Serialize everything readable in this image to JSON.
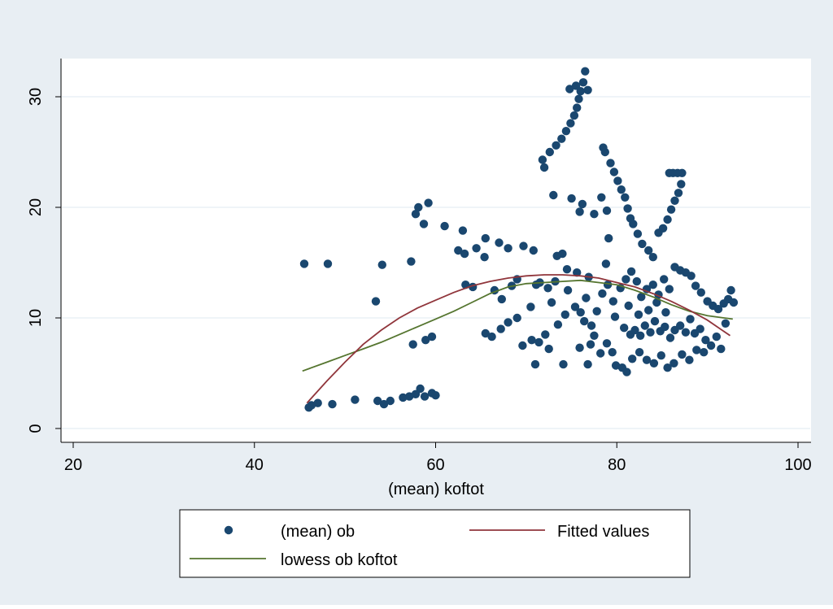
{
  "chart_data": {
    "type": "scatter",
    "title": "",
    "xlabel": "(mean) koftot",
    "ylabel": "",
    "xlim": [
      20,
      100
    ],
    "ylim": [
      0,
      33
    ],
    "x_ticks": [
      20,
      40,
      60,
      80,
      100
    ],
    "y_ticks": [
      0,
      10,
      20,
      30
    ],
    "x_tick_labels": [
      "20",
      "40",
      "60",
      "80",
      "100"
    ],
    "y_tick_labels": [
      "0",
      "10",
      "20",
      "30"
    ],
    "grid": "horizontal",
    "legend_position": "bottom",
    "colors": {
      "frame_background": "#e8eef3",
      "plot_background": "#ffffff",
      "grid": "#eaf0f5",
      "scatter": "#1a476f",
      "fitted": "#90353b",
      "lowess": "#55752f",
      "axis": "#000000"
    },
    "series": [
      {
        "name": "(mean) ob",
        "kind": "scatter",
        "points": [
          [
            45.5,
            14.9
          ],
          [
            48.1,
            14.9
          ],
          [
            54.1,
            14.8
          ],
          [
            57.3,
            15.1
          ],
          [
            53.4,
            11.5
          ],
          [
            46.0,
            1.9
          ],
          [
            46.3,
            2.1
          ],
          [
            47.0,
            2.3
          ],
          [
            48.6,
            2.2
          ],
          [
            51.1,
            2.6
          ],
          [
            53.6,
            2.5
          ],
          [
            54.3,
            2.2
          ],
          [
            55.0,
            2.5
          ],
          [
            56.4,
            2.8
          ],
          [
            57.1,
            2.9
          ],
          [
            57.8,
            3.1
          ],
          [
            58.3,
            3.6
          ],
          [
            58.8,
            2.9
          ],
          [
            59.6,
            3.2
          ],
          [
            60.0,
            3.0
          ],
          [
            57.8,
            19.4
          ],
          [
            58.1,
            20.0
          ],
          [
            58.7,
            18.5
          ],
          [
            59.2,
            20.4
          ],
          [
            57.5,
            7.6
          ],
          [
            58.9,
            8.0
          ],
          [
            59.6,
            8.3
          ],
          [
            61.0,
            18.3
          ],
          [
            62.5,
            16.1
          ],
          [
            63.2,
            15.8
          ],
          [
            63.0,
            17.9
          ],
          [
            64.5,
            16.3
          ],
          [
            65.5,
            17.2
          ],
          [
            67.0,
            16.8
          ],
          [
            68.0,
            16.3
          ],
          [
            69.7,
            16.5
          ],
          [
            70.8,
            16.1
          ],
          [
            63.3,
            13.0
          ],
          [
            64.1,
            12.8
          ],
          [
            65.4,
            15.5
          ],
          [
            66.5,
            12.5
          ],
          [
            67.3,
            11.7
          ],
          [
            68.4,
            12.9
          ],
          [
            69.0,
            13.5
          ],
          [
            70.5,
            11.0
          ],
          [
            71.5,
            13.2
          ],
          [
            72.4,
            12.7
          ],
          [
            65.5,
            8.6
          ],
          [
            66.2,
            8.3
          ],
          [
            67.2,
            9.0
          ],
          [
            68.0,
            9.6
          ],
          [
            69.0,
            10.0
          ],
          [
            69.6,
            7.5
          ],
          [
            70.6,
            8.0
          ],
          [
            71.4,
            7.8
          ],
          [
            71.0,
            5.8
          ],
          [
            72.5,
            7.2
          ],
          [
            72.8,
            11.4
          ],
          [
            73.4,
            15.6
          ],
          [
            74.0,
            15.8
          ],
          [
            74.5,
            14.4
          ],
          [
            75.6,
            14.1
          ],
          [
            73.0,
            21.1
          ],
          [
            75.0,
            20.8
          ],
          [
            76.2,
            20.3
          ],
          [
            75.9,
            19.6
          ],
          [
            77.5,
            19.4
          ],
          [
            78.3,
            20.9
          ],
          [
            78.9,
            19.7
          ],
          [
            79.1,
            17.2
          ],
          [
            71.8,
            24.3
          ],
          [
            72.0,
            23.6
          ],
          [
            72.6,
            25.0
          ],
          [
            73.3,
            25.6
          ],
          [
            73.9,
            26.2
          ],
          [
            74.4,
            26.9
          ],
          [
            74.9,
            27.6
          ],
          [
            75.3,
            28.3
          ],
          [
            75.6,
            29.0
          ],
          [
            75.8,
            29.8
          ],
          [
            76.0,
            30.5
          ],
          [
            76.3,
            31.3
          ],
          [
            76.5,
            32.3
          ],
          [
            76.8,
            30.6
          ],
          [
            75.5,
            31.0
          ],
          [
            74.8,
            30.7
          ],
          [
            78.5,
            25.4
          ],
          [
            78.7,
            25.0
          ],
          [
            79.3,
            24.0
          ],
          [
            79.7,
            23.2
          ],
          [
            80.1,
            22.4
          ],
          [
            80.5,
            21.6
          ],
          [
            80.9,
            20.9
          ],
          [
            81.2,
            19.9
          ],
          [
            81.5,
            19.0
          ],
          [
            81.8,
            18.5
          ],
          [
            82.3,
            17.6
          ],
          [
            82.8,
            16.7
          ],
          [
            83.5,
            16.1
          ],
          [
            84.0,
            15.5
          ],
          [
            84.6,
            17.7
          ],
          [
            85.1,
            18.1
          ],
          [
            85.6,
            18.9
          ],
          [
            86.0,
            19.8
          ],
          [
            86.4,
            20.6
          ],
          [
            86.8,
            21.3
          ],
          [
            87.1,
            22.1
          ],
          [
            86.2,
            23.1
          ],
          [
            86.7,
            23.1
          ],
          [
            87.2,
            23.1
          ],
          [
            85.8,
            23.1
          ],
          [
            76.0,
            10.5
          ],
          [
            76.6,
            11.8
          ],
          [
            77.2,
            9.3
          ],
          [
            77.8,
            10.6
          ],
          [
            78.4,
            12.2
          ],
          [
            79.0,
            13.0
          ],
          [
            79.6,
            11.5
          ],
          [
            80.4,
            12.7
          ],
          [
            81.0,
            13.5
          ],
          [
            81.6,
            14.2
          ],
          [
            82.2,
            13.3
          ],
          [
            82.7,
            11.9
          ],
          [
            83.3,
            12.6
          ],
          [
            84.0,
            13.0
          ],
          [
            84.6,
            12.1
          ],
          [
            85.2,
            13.5
          ],
          [
            85.8,
            12.6
          ],
          [
            86.4,
            14.6
          ],
          [
            87.0,
            14.3
          ],
          [
            87.6,
            14.1
          ],
          [
            88.2,
            13.8
          ],
          [
            88.7,
            12.9
          ],
          [
            89.3,
            12.3
          ],
          [
            90.0,
            11.5
          ],
          [
            90.6,
            11.1
          ],
          [
            91.2,
            10.8
          ],
          [
            91.8,
            11.3
          ],
          [
            92.3,
            11.7
          ],
          [
            92.6,
            12.5
          ],
          [
            92.9,
            11.4
          ],
          [
            81.5,
            8.5
          ],
          [
            82.0,
            8.9
          ],
          [
            82.6,
            8.4
          ],
          [
            83.1,
            9.3
          ],
          [
            83.7,
            8.7
          ],
          [
            84.2,
            9.7
          ],
          [
            84.8,
            8.8
          ],
          [
            85.3,
            9.2
          ],
          [
            85.9,
            8.2
          ],
          [
            86.4,
            8.9
          ],
          [
            87.0,
            9.3
          ],
          [
            87.6,
            8.7
          ],
          [
            88.1,
            9.9
          ],
          [
            88.6,
            8.6
          ],
          [
            89.2,
            9.0
          ],
          [
            89.8,
            8.0
          ],
          [
            90.4,
            7.5
          ],
          [
            91.0,
            8.3
          ],
          [
            91.5,
            7.2
          ],
          [
            92.0,
            9.5
          ],
          [
            79.9,
            5.7
          ],
          [
            80.6,
            5.5
          ],
          [
            81.1,
            5.1
          ],
          [
            81.7,
            6.3
          ],
          [
            82.5,
            6.9
          ],
          [
            83.3,
            6.2
          ],
          [
            84.1,
            5.9
          ],
          [
            84.9,
            6.6
          ],
          [
            85.6,
            5.5
          ],
          [
            86.3,
            5.9
          ],
          [
            87.2,
            6.7
          ],
          [
            88.0,
            6.2
          ],
          [
            88.8,
            7.1
          ],
          [
            89.6,
            6.9
          ],
          [
            73.2,
            13.3
          ],
          [
            74.6,
            12.5
          ],
          [
            75.4,
            11.0
          ],
          [
            76.4,
            9.7
          ],
          [
            77.5,
            8.4
          ],
          [
            78.2,
            6.8
          ],
          [
            78.9,
            7.7
          ],
          [
            79.5,
            6.9
          ],
          [
            76.8,
            5.8
          ],
          [
            74.1,
            5.8
          ],
          [
            75.9,
            7.3
          ],
          [
            77.1,
            7.6
          ],
          [
            73.5,
            9.4
          ],
          [
            72.1,
            8.5
          ],
          [
            71.1,
            13.0
          ],
          [
            74.3,
            10.3
          ],
          [
            76.9,
            13.7
          ],
          [
            78.8,
            14.9
          ],
          [
            79.8,
            10.1
          ],
          [
            80.8,
            9.1
          ],
          [
            81.3,
            11.1
          ],
          [
            82.4,
            10.3
          ],
          [
            83.5,
            10.7
          ],
          [
            84.4,
            11.4
          ],
          [
            85.4,
            10.5
          ]
        ]
      },
      {
        "name": "Fitted values",
        "kind": "line",
        "points": [
          [
            45.8,
            2.3
          ],
          [
            48,
            4.3
          ],
          [
            50,
            6.0
          ],
          [
            52,
            7.6
          ],
          [
            54,
            8.9
          ],
          [
            56,
            10.0
          ],
          [
            58,
            10.9
          ],
          [
            60,
            11.6
          ],
          [
            62,
            12.3
          ],
          [
            64,
            12.9
          ],
          [
            66,
            13.3
          ],
          [
            68,
            13.6
          ],
          [
            70,
            13.8
          ],
          [
            72,
            13.9
          ],
          [
            74,
            13.9
          ],
          [
            76,
            13.8
          ],
          [
            78,
            13.6
          ],
          [
            80,
            13.2
          ],
          [
            82,
            12.8
          ],
          [
            84,
            12.2
          ],
          [
            86,
            11.5
          ],
          [
            88,
            10.7
          ],
          [
            90,
            9.8
          ],
          [
            92.5,
            8.4
          ]
        ]
      },
      {
        "name": "lowess ob koftot",
        "kind": "line",
        "points": [
          [
            45.3,
            5.2
          ],
          [
            48,
            6.0
          ],
          [
            50,
            6.6
          ],
          [
            52,
            7.2
          ],
          [
            54,
            7.8
          ],
          [
            56,
            8.5
          ],
          [
            58,
            9.2
          ],
          [
            60,
            9.9
          ],
          [
            62,
            10.6
          ],
          [
            64,
            11.4
          ],
          [
            66,
            12.2
          ],
          [
            68,
            12.8
          ],
          [
            70,
            13.1
          ],
          [
            72,
            13.2
          ],
          [
            74,
            13.3
          ],
          [
            76,
            13.4
          ],
          [
            78,
            13.2
          ],
          [
            80,
            13.0
          ],
          [
            82,
            12.5
          ],
          [
            84,
            11.9
          ],
          [
            86,
            11.2
          ],
          [
            88,
            10.6
          ],
          [
            90,
            10.2
          ],
          [
            92.8,
            9.9
          ]
        ]
      }
    ]
  }
}
